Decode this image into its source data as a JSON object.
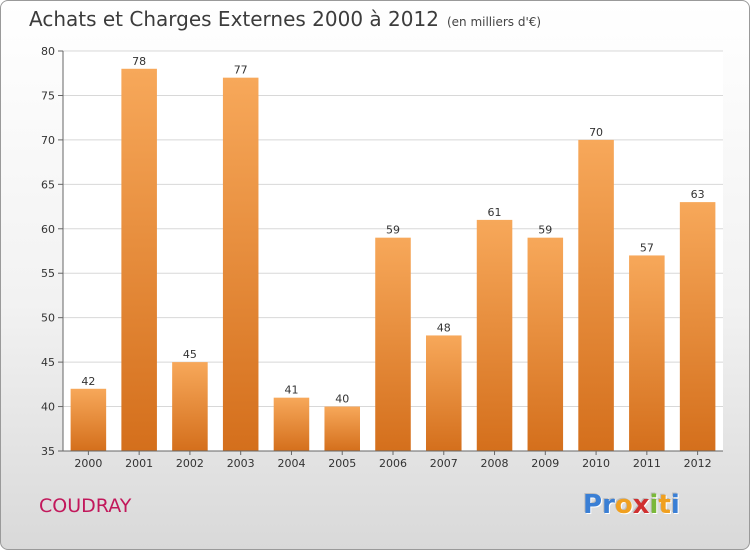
{
  "header": {
    "title": "Achats et Charges Externes 2000 à 2012",
    "subtitle": "(en milliers d'€)"
  },
  "footer": {
    "commune": "COUDRAY",
    "logo_letters": [
      "P",
      "r",
      "o",
      "x",
      "i",
      "t",
      "i"
    ],
    "logo_colors": [
      "#3a7fd5",
      "#3a7fd5",
      "#f0a020",
      "#d03030",
      "#7ab83a",
      "#f0a020",
      "#3a7fd5"
    ]
  },
  "chart_data": {
    "type": "bar",
    "categories": [
      "2000",
      "2001",
      "2002",
      "2003",
      "2004",
      "2005",
      "2006",
      "2007",
      "2008",
      "2009",
      "2010",
      "2011",
      "2012"
    ],
    "values": [
      42,
      78,
      45,
      77,
      41,
      40,
      59,
      48,
      61,
      59,
      70,
      57,
      63
    ],
    "title": "Achats et Charges Externes 2000 à 2012",
    "xlabel": "",
    "ylabel": "",
    "ylim": [
      35,
      80
    ],
    "yticks": [
      35,
      40,
      45,
      50,
      55,
      60,
      65,
      70,
      75,
      80
    ],
    "grid": true,
    "colors": {
      "bar_top": "#f7a85a",
      "bar_bottom": "#d46f1c"
    }
  }
}
